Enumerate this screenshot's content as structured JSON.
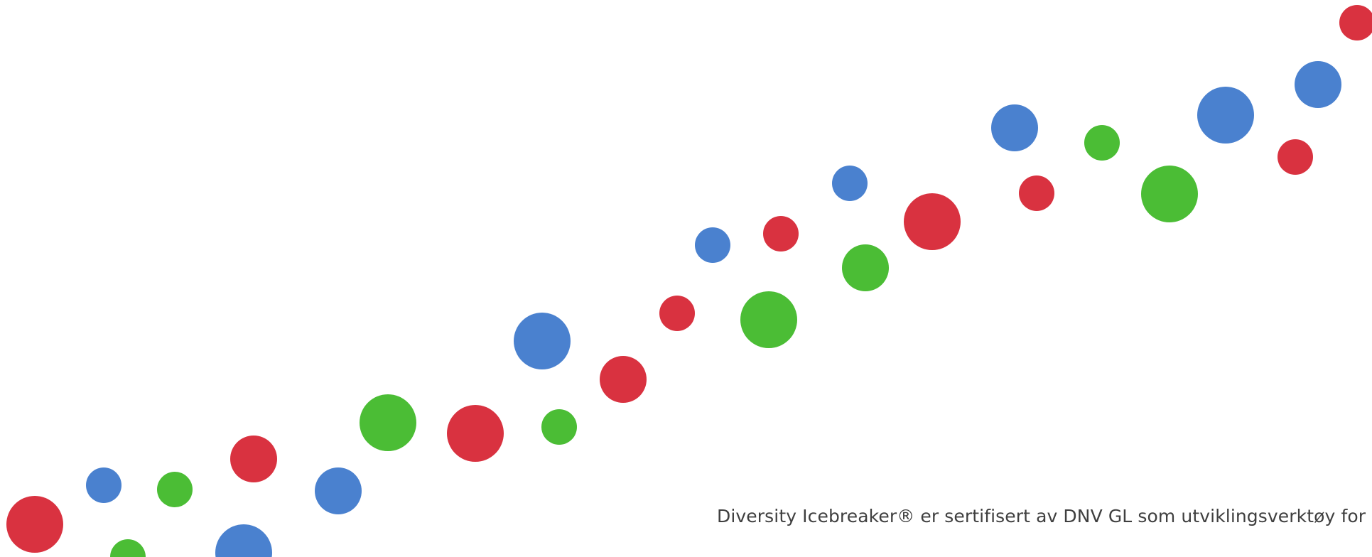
{
  "footer": {
    "text": "Diversity Icebreaker® er sertifisert av DNV GL som utviklingsverktøy for semin"
  },
  "palette": {
    "red": "#d93240",
    "blue": "#4a81cf",
    "green": "#4bbd35"
  }
}
